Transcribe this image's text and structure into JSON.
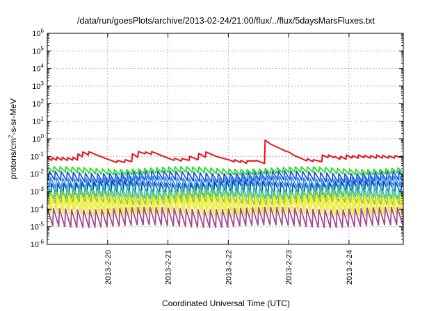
{
  "chart_data": {
    "type": "line",
    "title": "/data/run/goesPlots/archive/2013-02-24/21:00/flux/../flux/5daysMarsFluxes.txt",
    "xlabel": "Coordinated Universal Time (UTC)",
    "ylabel": "protons/cm2-s-sr-MeV",
    "ylabel_parts": {
      "pre": "protons/cm",
      "sup": "2",
      "post": "-s-sr-MeV"
    },
    "y_scale": "log",
    "ylim_exponents": [
      -6,
      6
    ],
    "y_tick_exponents": [
      -6,
      -5,
      -4,
      -3,
      -2,
      -1,
      0,
      1,
      2,
      3,
      4,
      5,
      6
    ],
    "y_tick_base": "10",
    "x_ticks": [
      "2013-2-20",
      "2013-2-21",
      "2013-2-22",
      "2013-2-23",
      "2013-2-24"
    ],
    "x_tick_days": [
      1,
      2,
      3,
      4,
      5
    ],
    "xlim_days": [
      0.0,
      5.9
    ],
    "grid": true,
    "legend": "none",
    "series": [
      {
        "color": "#e8141c",
        "width": 2.0,
        "sawtooth": false,
        "points": [
          [
            0.0,
            0.085
          ],
          [
            0.07,
            0.06
          ],
          [
            0.08,
            0.085
          ],
          [
            0.15,
            0.062
          ],
          [
            0.16,
            0.09
          ],
          [
            0.24,
            0.062
          ],
          [
            0.25,
            0.088
          ],
          [
            0.33,
            0.06
          ],
          [
            0.34,
            0.085
          ],
          [
            0.42,
            0.062
          ],
          [
            0.43,
            0.09
          ],
          [
            0.5,
            0.062
          ],
          [
            0.51,
            0.14
          ],
          [
            0.58,
            0.095
          ],
          [
            0.59,
            0.18
          ],
          [
            0.68,
            0.12
          ],
          [
            0.69,
            0.185
          ],
          [
            0.85,
            0.11
          ],
          [
            1.0,
            0.07
          ],
          [
            1.15,
            0.045
          ],
          [
            1.16,
            0.06
          ],
          [
            1.28,
            0.045
          ],
          [
            1.29,
            0.065
          ],
          [
            1.4,
            0.05
          ],
          [
            1.41,
            0.14
          ],
          [
            1.5,
            0.09
          ],
          [
            1.51,
            0.19
          ],
          [
            1.62,
            0.14
          ],
          [
            1.63,
            0.18
          ],
          [
            1.72,
            0.13
          ],
          [
            1.73,
            0.19
          ],
          [
            1.9,
            0.11
          ],
          [
            2.0,
            0.08
          ],
          [
            2.1,
            0.06
          ],
          [
            2.11,
            0.08
          ],
          [
            2.22,
            0.055
          ],
          [
            2.23,
            0.075
          ],
          [
            2.35,
            0.06
          ],
          [
            2.36,
            0.1
          ],
          [
            2.5,
            0.065
          ],
          [
            2.51,
            0.15
          ],
          [
            2.62,
            0.09
          ],
          [
            2.63,
            0.18
          ],
          [
            2.8,
            0.1
          ],
          [
            3.0,
            0.065
          ],
          [
            3.1,
            0.05
          ],
          [
            3.11,
            0.065
          ],
          [
            3.2,
            0.045
          ],
          [
            3.21,
            0.06
          ],
          [
            3.3,
            0.04
          ],
          [
            3.31,
            0.055
          ],
          [
            3.45,
            0.055
          ],
          [
            3.46,
            0.06
          ],
          [
            3.6,
            0.04
          ],
          [
            3.61,
            0.85
          ],
          [
            3.7,
            0.5
          ],
          [
            3.8,
            0.35
          ],
          [
            3.95,
            0.2
          ],
          [
            4.0,
            0.18
          ],
          [
            4.1,
            0.11
          ],
          [
            4.2,
            0.08
          ],
          [
            4.3,
            0.055
          ],
          [
            4.31,
            0.075
          ],
          [
            4.4,
            0.05
          ],
          [
            4.41,
            0.065
          ],
          [
            4.55,
            0.05
          ],
          [
            4.56,
            0.12
          ],
          [
            4.65,
            0.085
          ],
          [
            4.66,
            0.12
          ],
          [
            4.75,
            0.085
          ],
          [
            4.76,
            0.1
          ],
          [
            4.85,
            0.07
          ],
          [
            4.86,
            0.1
          ],
          [
            4.95,
            0.07
          ],
          [
            4.96,
            0.12
          ],
          [
            5.05,
            0.08
          ],
          [
            5.06,
            0.11
          ],
          [
            5.15,
            0.08
          ],
          [
            5.16,
            0.12
          ],
          [
            5.25,
            0.085
          ],
          [
            5.26,
            0.115
          ],
          [
            5.35,
            0.08
          ],
          [
            5.36,
            0.11
          ],
          [
            5.45,
            0.08
          ],
          [
            5.46,
            0.12
          ],
          [
            5.55,
            0.08
          ],
          [
            5.56,
            0.115
          ],
          [
            5.65,
            0.08
          ],
          [
            5.66,
            0.11
          ],
          [
            5.75,
            0.08
          ],
          [
            5.76,
            0.11
          ],
          [
            5.85,
            0.09
          ],
          [
            5.86,
            0.1
          ],
          [
            5.9,
            0.09
          ]
        ]
      },
      {
        "color": "#22dd1e",
        "width": 1.8,
        "sawtooth": true,
        "high": 0.022,
        "low": 0.011,
        "period": 0.1,
        "phase": 0.0
      },
      {
        "color": "#1e54dc",
        "width": 1.8,
        "sawtooth": true,
        "high": 0.013,
        "low": 0.004,
        "period": 0.1,
        "phase": 0.02
      },
      {
        "color": "#2a8ef0",
        "width": 1.8,
        "sawtooth": true,
        "high": 0.0065,
        "low": 0.0018,
        "period": 0.1,
        "phase": 0.04
      },
      {
        "color": "#1646a8",
        "width": 1.8,
        "sawtooth": true,
        "high": 0.0035,
        "low": 0.0008,
        "period": 0.1,
        "phase": 0.06
      },
      {
        "color": "#28c7c0",
        "width": 1.8,
        "sawtooth": true,
        "high": 0.002,
        "low": 0.00045,
        "period": 0.1,
        "phase": 0.01
      },
      {
        "color": "#98c82a",
        "width": 1.8,
        "sawtooth": true,
        "high": 0.001,
        "low": 0.00022,
        "period": 0.1,
        "phase": 0.03
      },
      {
        "color": "#f0f018",
        "width": 1.8,
        "sawtooth": true,
        "high": 0.00055,
        "low": 9e-05,
        "period": 0.1,
        "phase": 0.05
      },
      {
        "color": "#ecec5a",
        "width": 1.8,
        "sawtooth": true,
        "high": 0.0003,
        "low": 5e-05,
        "period": 0.1,
        "phase": 0.07
      },
      {
        "color": "#a04a8e",
        "width": 1.8,
        "sawtooth": true,
        "high": 0.00011,
        "low": 1.1e-05,
        "period": 0.1,
        "phase": 0.09
      }
    ]
  }
}
